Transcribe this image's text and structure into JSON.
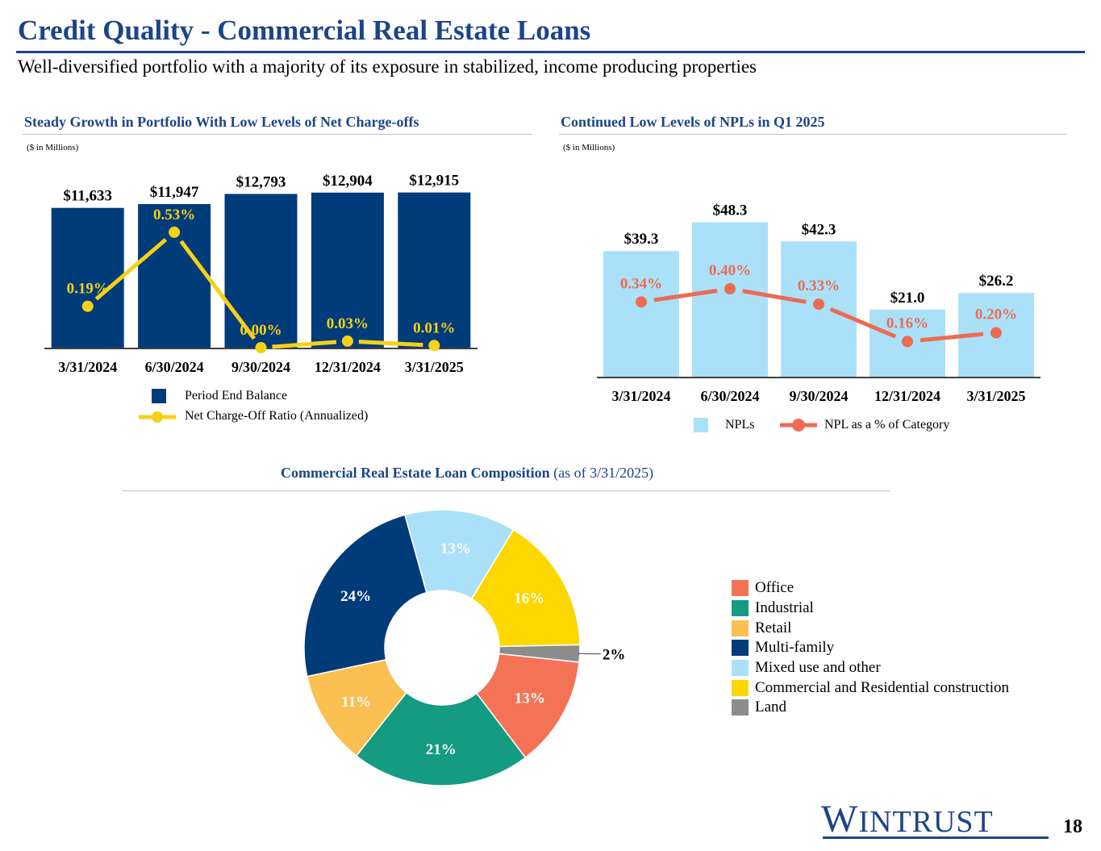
{
  "header": {
    "title": "Credit Quality - Commercial Real Estate Loans",
    "subtitle": "Well-diversified portfolio with a majority of its exposure in stabilized, income producing properties"
  },
  "colors": {
    "brand_navy": "#1c4587",
    "bar_navy": "#003b7a",
    "nco_line": "#f7d117",
    "npl_bar": "#abe0f9",
    "npl_line": "#ec6b52"
  },
  "footer": {
    "logo": "WINTRUST",
    "page_number": "18"
  },
  "chart_data": [
    {
      "id": "balance",
      "type": "bar",
      "title": "Steady Growth in Portfolio With Low Levels of Net Charge-offs",
      "units_note": "($ in Millions)",
      "categories": [
        "3/31/2024",
        "6/30/2024",
        "9/30/2024",
        "12/31/2024",
        "3/31/2025"
      ],
      "series": [
        {
          "name": "Period End Balance",
          "type": "bar",
          "values": [
            11633,
            11947,
            12793,
            12904,
            12915
          ],
          "labels": [
            "$11,633",
            "$11,947",
            "$12,793",
            "$12,904",
            "$12,915"
          ]
        },
        {
          "name": "Net Charge-Off Ratio (Annualized)",
          "type": "line",
          "values": [
            0.19,
            0.53,
            0.0,
            0.03,
            0.01
          ],
          "labels": [
            "0.19%",
            "0.53%",
            "0.00%",
            "0.03%",
            "0.01%"
          ]
        }
      ],
      "ylim_bar": [
        0,
        14500
      ],
      "ylim_line": [
        0,
        0.8
      ]
    },
    {
      "id": "npl",
      "type": "bar",
      "title": "Continued Low Levels of NPLs in Q1 2025",
      "units_note": "($ in Millions)",
      "categories": [
        "3/31/2024",
        "6/30/2024",
        "9/30/2024",
        "12/31/2024",
        "3/31/2025"
      ],
      "series": [
        {
          "name": "NPLs",
          "type": "bar",
          "values": [
            39.3,
            48.3,
            42.3,
            21.0,
            26.2
          ],
          "labels": [
            "$39.3",
            "$48.3",
            "$42.3",
            "$21.0",
            "$26.2"
          ]
        },
        {
          "name": "NPL as a % of Category",
          "type": "line",
          "values": [
            0.34,
            0.4,
            0.33,
            0.16,
            0.2
          ],
          "labels": [
            "0.34%",
            "0.40%",
            "0.33%",
            "0.16%",
            "0.20%"
          ]
        }
      ],
      "ylim_bar": [
        0,
        55
      ],
      "ylim_line": [
        0,
        0.8
      ]
    },
    {
      "id": "composition",
      "type": "pie",
      "title": "Commercial Real Estate Loan Composition",
      "title_suffix": "(as of 3/31/2025)",
      "slices": [
        {
          "name": "Office",
          "value": 13,
          "label": "13%",
          "color": "#f47356"
        },
        {
          "name": "Industrial",
          "value": 21,
          "label": "21%",
          "color": "#149b82"
        },
        {
          "name": "Retail",
          "value": 11,
          "label": "11%",
          "color": "#fbbf52"
        },
        {
          "name": "Multi-family",
          "value": 24,
          "label": "24%",
          "color": "#003b7a"
        },
        {
          "name": "Mixed use and other",
          "value": 13,
          "label": "13%",
          "color": "#abe0f9"
        },
        {
          "name": "Commercial and Residential construction",
          "value": 16,
          "label": "16%",
          "color": "#fdd701"
        },
        {
          "name": "Land",
          "value": 2,
          "label": "2%",
          "color": "#8c8c8c"
        }
      ]
    }
  ]
}
